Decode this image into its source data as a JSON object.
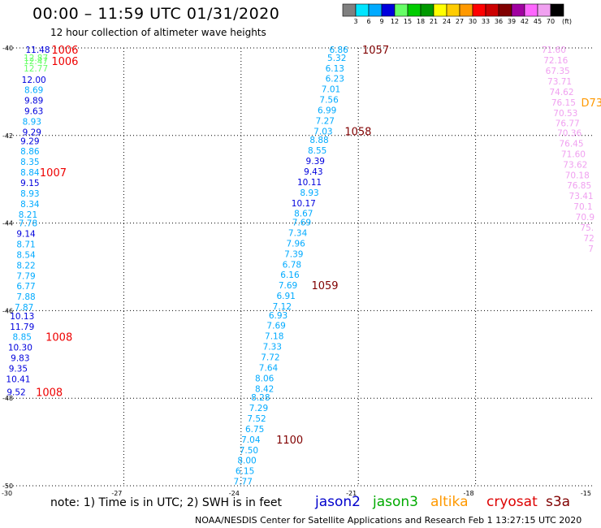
{
  "header": {
    "title": "00:00 – 11:59 UTC 01/31/2020",
    "subtitle": "12 hour collection of altimeter wave heights"
  },
  "footer": {
    "note": "note:  1) Time is in UTC;  2) SWH is in feet",
    "credit": "NOAA/NESDIS Center for Satellite Applications and Research     Feb  1 13:27:15 UTC 2020"
  },
  "satellites": [
    {
      "name": "jason2",
      "color": "#0000cc"
    },
    {
      "name": "jason3",
      "color": "#00aa00"
    },
    {
      "name": "altika",
      "color": "#ff9900"
    },
    {
      "name": "cryosat",
      "color": "#dd0000"
    },
    {
      "name": "s3a",
      "color": "#800000"
    }
  ],
  "colorbar": {
    "unit": "(ft)",
    "ticks": [
      "3",
      "6",
      "9",
      "12",
      "15",
      "18",
      "21",
      "24",
      "27",
      "30",
      "33",
      "36",
      "39",
      "42",
      "45",
      "70"
    ],
    "colors": [
      "#808080",
      "#00e5ff",
      "#00aaff",
      "#0000dd",
      "#66ff66",
      "#00cc00",
      "#009900",
      "#ffff00",
      "#ffcc00",
      "#ff9900",
      "#ff0000",
      "#cc0000",
      "#800000",
      "#a000a0",
      "#ff66ff",
      "#f0a0f0",
      "#000000"
    ]
  },
  "chart_data": {
    "type": "scatter",
    "xlabel": "",
    "ylabel": "",
    "xlim": [
      -30,
      -15
    ],
    "ylim": [
      -50,
      -40
    ],
    "xticks": [
      "-30",
      "-27",
      "-24",
      "-21",
      "-18",
      "-15"
    ],
    "yticks": [
      "-40",
      "-42",
      "-44",
      "-46",
      "-48",
      "-50"
    ],
    "tracks": [
      {
        "name": "track-a",
        "points": [
          {
            "label": "11.48",
            "x": -29.2,
            "y": -40.04,
            "c": "#0000dd"
          },
          {
            "label": "12.87",
            "x": -29.25,
            "y": -40.22,
            "c": "#66ff66"
          },
          {
            "label": "12.47",
            "x": -29.25,
            "y": -40.3,
            "c": "#66ff66"
          },
          {
            "label": "12.77",
            "x": -29.25,
            "y": -40.46,
            "c": "#66ff66"
          },
          {
            "label": "12.00",
            "x": -29.3,
            "y": -40.72,
            "c": "#0000dd"
          },
          {
            "label": "8.69",
            "x": -29.3,
            "y": -40.96,
            "c": "#00aaff"
          },
          {
            "label": "9.89",
            "x": -29.3,
            "y": -41.2,
            "c": "#0000dd"
          },
          {
            "label": "9.63",
            "x": -29.3,
            "y": -41.44,
            "c": "#0000dd"
          },
          {
            "label": "8.93",
            "x": -29.35,
            "y": -41.68,
            "c": "#00aaff"
          },
          {
            "label": "9.29",
            "x": -29.35,
            "y": -41.92,
            "c": "#0000dd"
          },
          {
            "label": "9.29",
            "x": -29.4,
            "y": -42.12,
            "c": "#0000dd"
          },
          {
            "label": "8.86",
            "x": -29.4,
            "y": -42.36,
            "c": "#00aaff"
          },
          {
            "label": "8.35",
            "x": -29.4,
            "y": -42.6,
            "c": "#00aaff"
          },
          {
            "label": "8.84",
            "x": -29.4,
            "y": -42.84,
            "c": "#00aaff"
          },
          {
            "label": "9.15",
            "x": -29.4,
            "y": -43.08,
            "c": "#0000dd"
          },
          {
            "label": "8.93",
            "x": -29.4,
            "y": -43.32,
            "c": "#00aaff"
          },
          {
            "label": "8.34",
            "x": -29.4,
            "y": -43.56,
            "c": "#00aaff"
          },
          {
            "label": "8.21",
            "x": -29.45,
            "y": -43.8,
            "c": "#00aaff"
          },
          {
            "label": "7.78",
            "x": -29.45,
            "y": -44.0,
            "c": "#00aaff"
          },
          {
            "label": "9.14",
            "x": -29.5,
            "y": -44.24,
            "c": "#0000dd"
          },
          {
            "label": "8.71",
            "x": -29.5,
            "y": -44.48,
            "c": "#00aaff"
          },
          {
            "label": "8.54",
            "x": -29.5,
            "y": -44.72,
            "c": "#00aaff"
          },
          {
            "label": "8.22",
            "x": -29.5,
            "y": -44.96,
            "c": "#00aaff"
          },
          {
            "label": "7.79",
            "x": -29.5,
            "y": -45.2,
            "c": "#00aaff"
          },
          {
            "label": "6.77",
            "x": -29.5,
            "y": -45.44,
            "c": "#00aaff"
          },
          {
            "label": "7.88",
            "x": -29.5,
            "y": -45.68,
            "c": "#00aaff"
          },
          {
            "label": "7.87",
            "x": -29.55,
            "y": -45.92,
            "c": "#00aaff"
          },
          {
            "label": "10.13",
            "x": -29.6,
            "y": -46.12,
            "c": "#0000dd"
          },
          {
            "label": "11.79",
            "x": -29.6,
            "y": -46.36,
            "c": "#0000dd"
          },
          {
            "label": "8.85",
            "x": -29.6,
            "y": -46.6,
            "c": "#00aaff"
          },
          {
            "label": "10.30",
            "x": -29.65,
            "y": -46.84,
            "c": "#0000dd"
          },
          {
            "label": "9.83",
            "x": -29.65,
            "y": -47.08,
            "c": "#0000dd"
          },
          {
            "label": "9.35",
            "x": -29.7,
            "y": -47.32,
            "c": "#0000dd"
          },
          {
            "label": "10.41",
            "x": -29.7,
            "y": -47.56,
            "c": "#0000dd"
          },
          {
            "label": "9.52",
            "x": -29.75,
            "y": -47.86,
            "c": "#0000dd"
          }
        ]
      },
      {
        "name": "track-b",
        "points": [
          {
            "label": "6.86",
            "x": -21.5,
            "y": -40.04,
            "c": "#00aaff"
          },
          {
            "label": "5.32",
            "x": -21.55,
            "y": -40.22,
            "c": "#00aaff"
          },
          {
            "label": "6.13",
            "x": -21.6,
            "y": -40.46,
            "c": "#00aaff"
          },
          {
            "label": "6.23",
            "x": -21.6,
            "y": -40.7,
            "c": "#00aaff"
          },
          {
            "label": "7.01",
            "x": -21.7,
            "y": -40.94,
            "c": "#00aaff"
          },
          {
            "label": "7.56",
            "x": -21.75,
            "y": -41.18,
            "c": "#00aaff"
          },
          {
            "label": "6.99",
            "x": -21.8,
            "y": -41.42,
            "c": "#00aaff"
          },
          {
            "label": "7.27",
            "x": -21.85,
            "y": -41.66,
            "c": "#00aaff"
          },
          {
            "label": "7.03",
            "x": -21.9,
            "y": -41.9,
            "c": "#00aaff"
          },
          {
            "label": "8.88",
            "x": -22.0,
            "y": -42.1,
            "c": "#00aaff"
          },
          {
            "label": "8.55",
            "x": -22.05,
            "y": -42.34,
            "c": "#00aaff"
          },
          {
            "label": "9.39",
            "x": -22.1,
            "y": -42.58,
            "c": "#0000dd"
          },
          {
            "label": "9.43",
            "x": -22.15,
            "y": -42.82,
            "c": "#0000dd"
          },
          {
            "label": "10.11",
            "x": -22.25,
            "y": -43.06,
            "c": "#0000dd"
          },
          {
            "label": "8.93",
            "x": -22.25,
            "y": -43.3,
            "c": "#00aaff"
          },
          {
            "label": "10.17",
            "x": -22.4,
            "y": -43.54,
            "c": "#0000dd"
          },
          {
            "label": "8.67",
            "x": -22.4,
            "y": -43.78,
            "c": "#00aaff"
          },
          {
            "label": "7.69",
            "x": -22.45,
            "y": -43.98,
            "c": "#00aaff"
          },
          {
            "label": "7.34",
            "x": -22.55,
            "y": -44.22,
            "c": "#00aaff"
          },
          {
            "label": "7.96",
            "x": -22.6,
            "y": -44.46,
            "c": "#00aaff"
          },
          {
            "label": "7.39",
            "x": -22.65,
            "y": -44.7,
            "c": "#00aaff"
          },
          {
            "label": "6.78",
            "x": -22.7,
            "y": -44.94,
            "c": "#00aaff"
          },
          {
            "label": "6.16",
            "x": -22.75,
            "y": -45.18,
            "c": "#00aaff"
          },
          {
            "label": "7.69",
            "x": -22.8,
            "y": -45.42,
            "c": "#00aaff"
          },
          {
            "label": "6.91",
            "x": -22.85,
            "y": -45.66,
            "c": "#00aaff"
          },
          {
            "label": "7.12",
            "x": -22.95,
            "y": -45.9,
            "c": "#00aaff"
          },
          {
            "label": "6.93",
            "x": -23.05,
            "y": -46.1,
            "c": "#00aaff"
          },
          {
            "label": "7.69",
            "x": -23.1,
            "y": -46.34,
            "c": "#00aaff"
          },
          {
            "label": "7.18",
            "x": -23.15,
            "y": -46.58,
            "c": "#00aaff"
          },
          {
            "label": "7.33",
            "x": -23.2,
            "y": -46.82,
            "c": "#00aaff"
          },
          {
            "label": "7.72",
            "x": -23.25,
            "y": -47.06,
            "c": "#00aaff"
          },
          {
            "label": "7.64",
            "x": -23.3,
            "y": -47.3,
            "c": "#00aaff"
          },
          {
            "label": "8.06",
            "x": -23.4,
            "y": -47.54,
            "c": "#00aaff"
          },
          {
            "label": "8.42",
            "x": -23.4,
            "y": -47.78,
            "c": "#00aaff"
          },
          {
            "label": "8.28",
            "x": -23.5,
            "y": -47.98,
            "c": "#00aaff"
          },
          {
            "label": "7.29",
            "x": -23.55,
            "y": -48.22,
            "c": "#00aaff"
          },
          {
            "label": "7.52",
            "x": -23.6,
            "y": -48.46,
            "c": "#00aaff"
          },
          {
            "label": "6.75",
            "x": -23.65,
            "y": -48.7,
            "c": "#00aaff"
          },
          {
            "label": "7.04",
            "x": -23.75,
            "y": -48.94,
            "c": "#00aaff"
          },
          {
            "label": "7.50",
            "x": -23.8,
            "y": -49.18,
            "c": "#00aaff"
          },
          {
            "label": "8.00",
            "x": -23.85,
            "y": -49.42,
            "c": "#00aaff"
          },
          {
            "label": "6.15",
            "x": -23.9,
            "y": -49.66,
            "c": "#00aaff"
          },
          {
            "label": "7.77",
            "x": -23.95,
            "y": -49.9,
            "c": "#00aaff"
          }
        ]
      },
      {
        "name": "track-c",
        "points": [
          {
            "label": "71.60",
            "x": -16.0,
            "y": -40.04,
            "c": "#f0a0f0"
          },
          {
            "label": "72.16",
            "x": -15.95,
            "y": -40.28,
            "c": "#f0a0f0"
          },
          {
            "label": "67.35",
            "x": -15.9,
            "y": -40.52,
            "c": "#f0a0f0"
          },
          {
            "label": "73.71",
            "x": -15.85,
            "y": -40.76,
            "c": "#f0a0f0"
          },
          {
            "label": "74.62",
            "x": -15.8,
            "y": -41.0,
            "c": "#f0a0f0"
          },
          {
            "label": "76.15",
            "x": -15.75,
            "y": -41.24,
            "c": "#f0a0f0"
          },
          {
            "label": "70.53",
            "x": -15.7,
            "y": -41.48,
            "c": "#f0a0f0"
          },
          {
            "label": "76.77",
            "x": -15.65,
            "y": -41.72,
            "c": "#f0a0f0"
          },
          {
            "label": "70.36",
            "x": -15.6,
            "y": -41.94,
            "c": "#f0a0f0"
          },
          {
            "label": "76.45",
            "x": -15.55,
            "y": -42.18,
            "c": "#f0a0f0"
          },
          {
            "label": "71.60",
            "x": -15.5,
            "y": -42.42,
            "c": "#f0a0f0"
          },
          {
            "label": "73.62",
            "x": -15.45,
            "y": -42.66,
            "c": "#f0a0f0"
          },
          {
            "label": "70.18",
            "x": -15.4,
            "y": -42.9,
            "c": "#f0a0f0"
          },
          {
            "label": "76.85",
            "x": -15.35,
            "y": -43.14,
            "c": "#f0a0f0"
          },
          {
            "label": "73.41",
            "x": -15.3,
            "y": -43.38,
            "c": "#f0a0f0"
          },
          {
            "label": "70.1",
            "x": -15.25,
            "y": -43.62,
            "c": "#f0a0f0"
          },
          {
            "label": "70.9",
            "x": -15.2,
            "y": -43.86,
            "c": "#f0a0f0"
          },
          {
            "label": "75.",
            "x": -15.15,
            "y": -44.1,
            "c": "#f0a0f0"
          },
          {
            "label": "72",
            "x": -15.1,
            "y": -44.34,
            "c": "#f0a0f0"
          },
          {
            "label": "7",
            "x": -15.05,
            "y": -44.58,
            "c": "#f0a0f0"
          }
        ]
      }
    ],
    "annotations": [
      {
        "label": "1006",
        "x": -28.85,
        "y": -40.04,
        "c": "#ee0000"
      },
      {
        "label": "1006",
        "x": -28.85,
        "y": -40.3,
        "c": "#ee0000"
      },
      {
        "label": "1007",
        "x": -29.15,
        "y": -42.84,
        "c": "#ee0000"
      },
      {
        "label": "1008",
        "x": -29.0,
        "y": -46.6,
        "c": "#ee0000"
      },
      {
        "label": "1008",
        "x": -29.25,
        "y": -47.86,
        "c": "#ee0000"
      },
      {
        "label": "1057",
        "x": -20.9,
        "y": -40.04,
        "c": "#800000"
      },
      {
        "label": "1058",
        "x": -21.35,
        "y": -41.9,
        "c": "#800000"
      },
      {
        "label": "1059",
        "x": -22.2,
        "y": -45.42,
        "c": "#800000"
      },
      {
        "label": "1100",
        "x": -23.1,
        "y": -48.94,
        "c": "#800000"
      },
      {
        "label": "D73",
        "x": -15.3,
        "y": -41.24,
        "c": "#ff9900"
      }
    ]
  }
}
